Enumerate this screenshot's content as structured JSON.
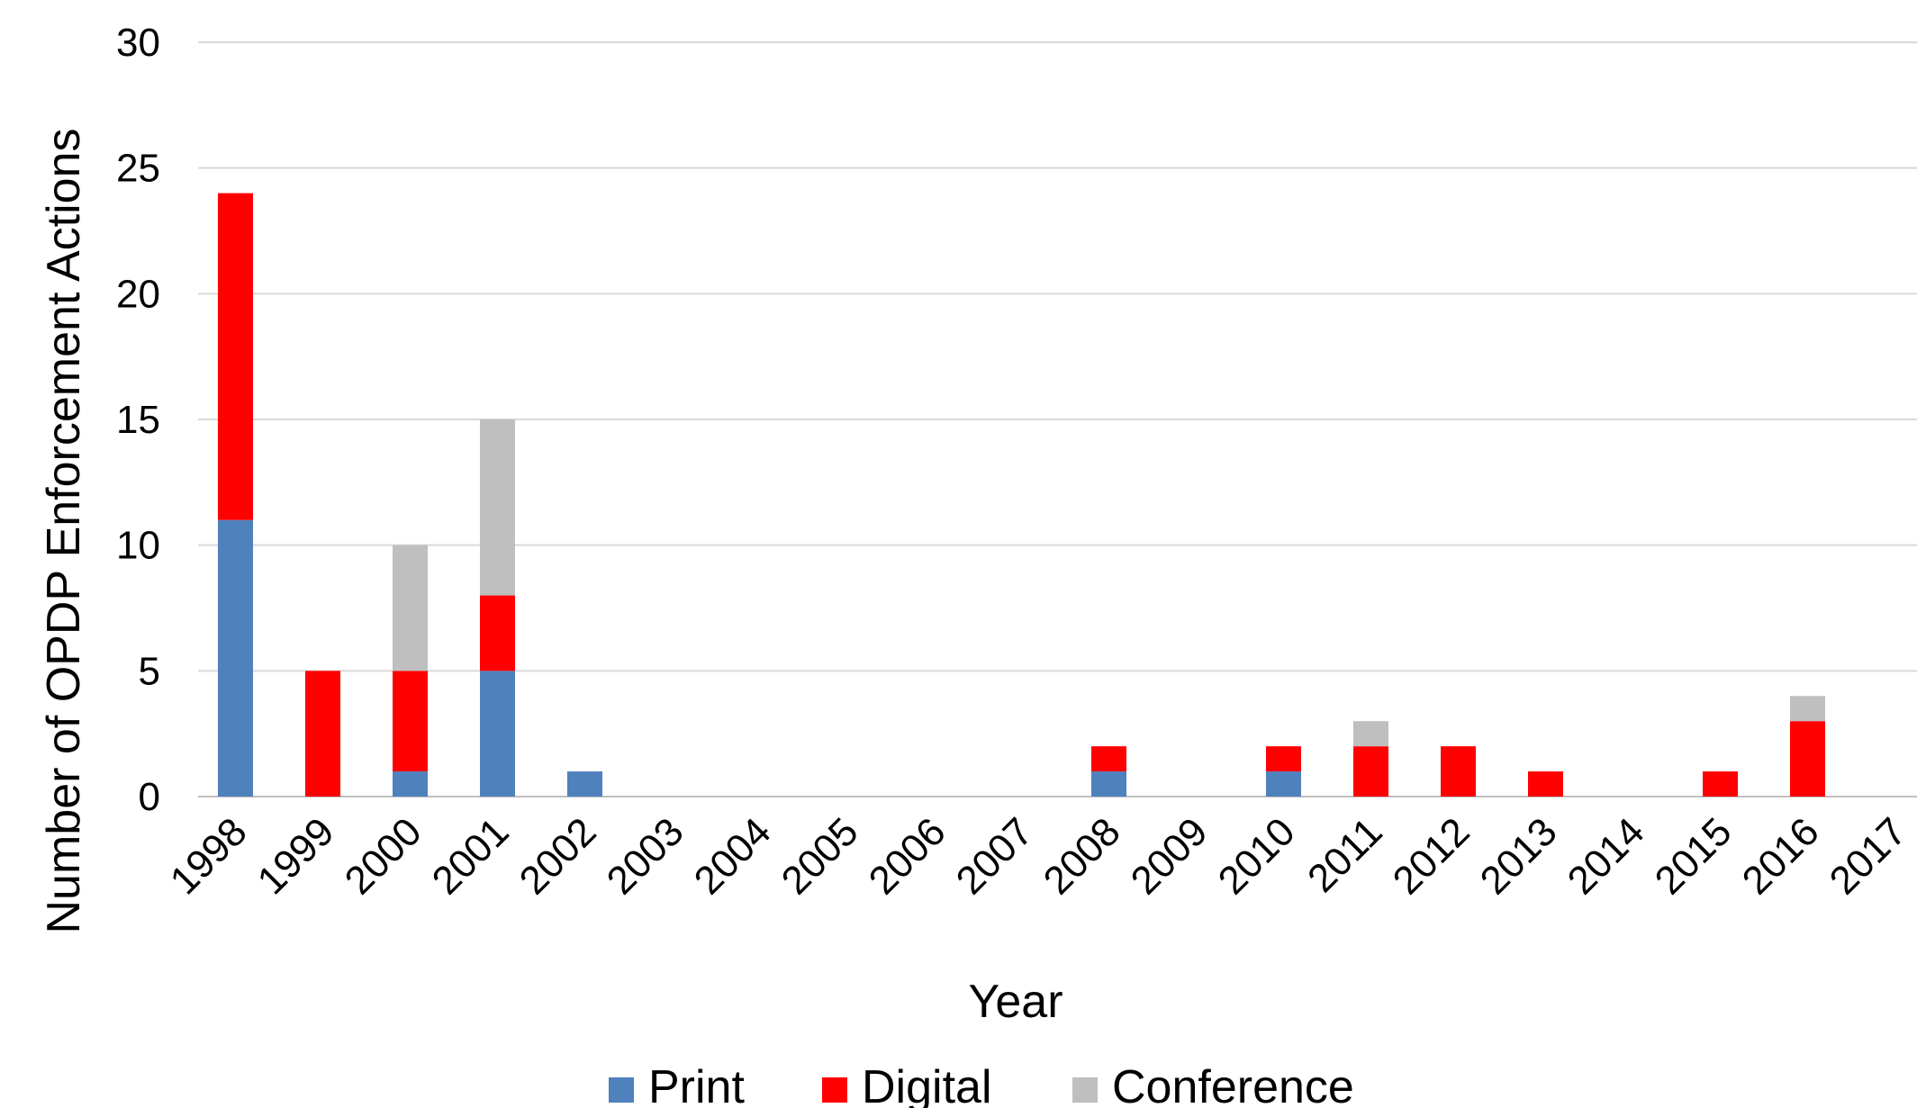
{
  "chart_data": {
    "type": "bar",
    "stacked": true,
    "title": "",
    "xlabel": "Year",
    "ylabel": "Number of OPDP Enforcement Actions",
    "ylim": [
      0,
      30
    ],
    "yticks": [
      0,
      5,
      10,
      15,
      20,
      25,
      30
    ],
    "grid": true,
    "legend_position": "bottom",
    "categories": [
      "1998",
      "1999",
      "2000",
      "2001",
      "2002",
      "2003",
      "2004",
      "2005",
      "2006",
      "2007",
      "2008",
      "2009",
      "2010",
      "2011",
      "2012",
      "2013",
      "2014",
      "2015",
      "2016",
      "2017"
    ],
    "series": [
      {
        "name": "Print",
        "color": "#4f81bd",
        "values": [
          11,
          0,
          1,
          5,
          1,
          0,
          0,
          0,
          0,
          0,
          1,
          0,
          1,
          0,
          0,
          0,
          0,
          0,
          0,
          0
        ]
      },
      {
        "name": "Digital",
        "color": "#ff0000",
        "values": [
          13,
          5,
          4,
          3,
          0,
          0,
          0,
          0,
          0,
          0,
          1,
          0,
          1,
          2,
          2,
          1,
          0,
          1,
          3,
          0
        ]
      },
      {
        "name": "Conference",
        "color": "#bfbfbf",
        "values": [
          0,
          0,
          5,
          7,
          0,
          0,
          0,
          0,
          0,
          0,
          0,
          0,
          0,
          1,
          0,
          0,
          0,
          0,
          1,
          0
        ]
      }
    ]
  }
}
